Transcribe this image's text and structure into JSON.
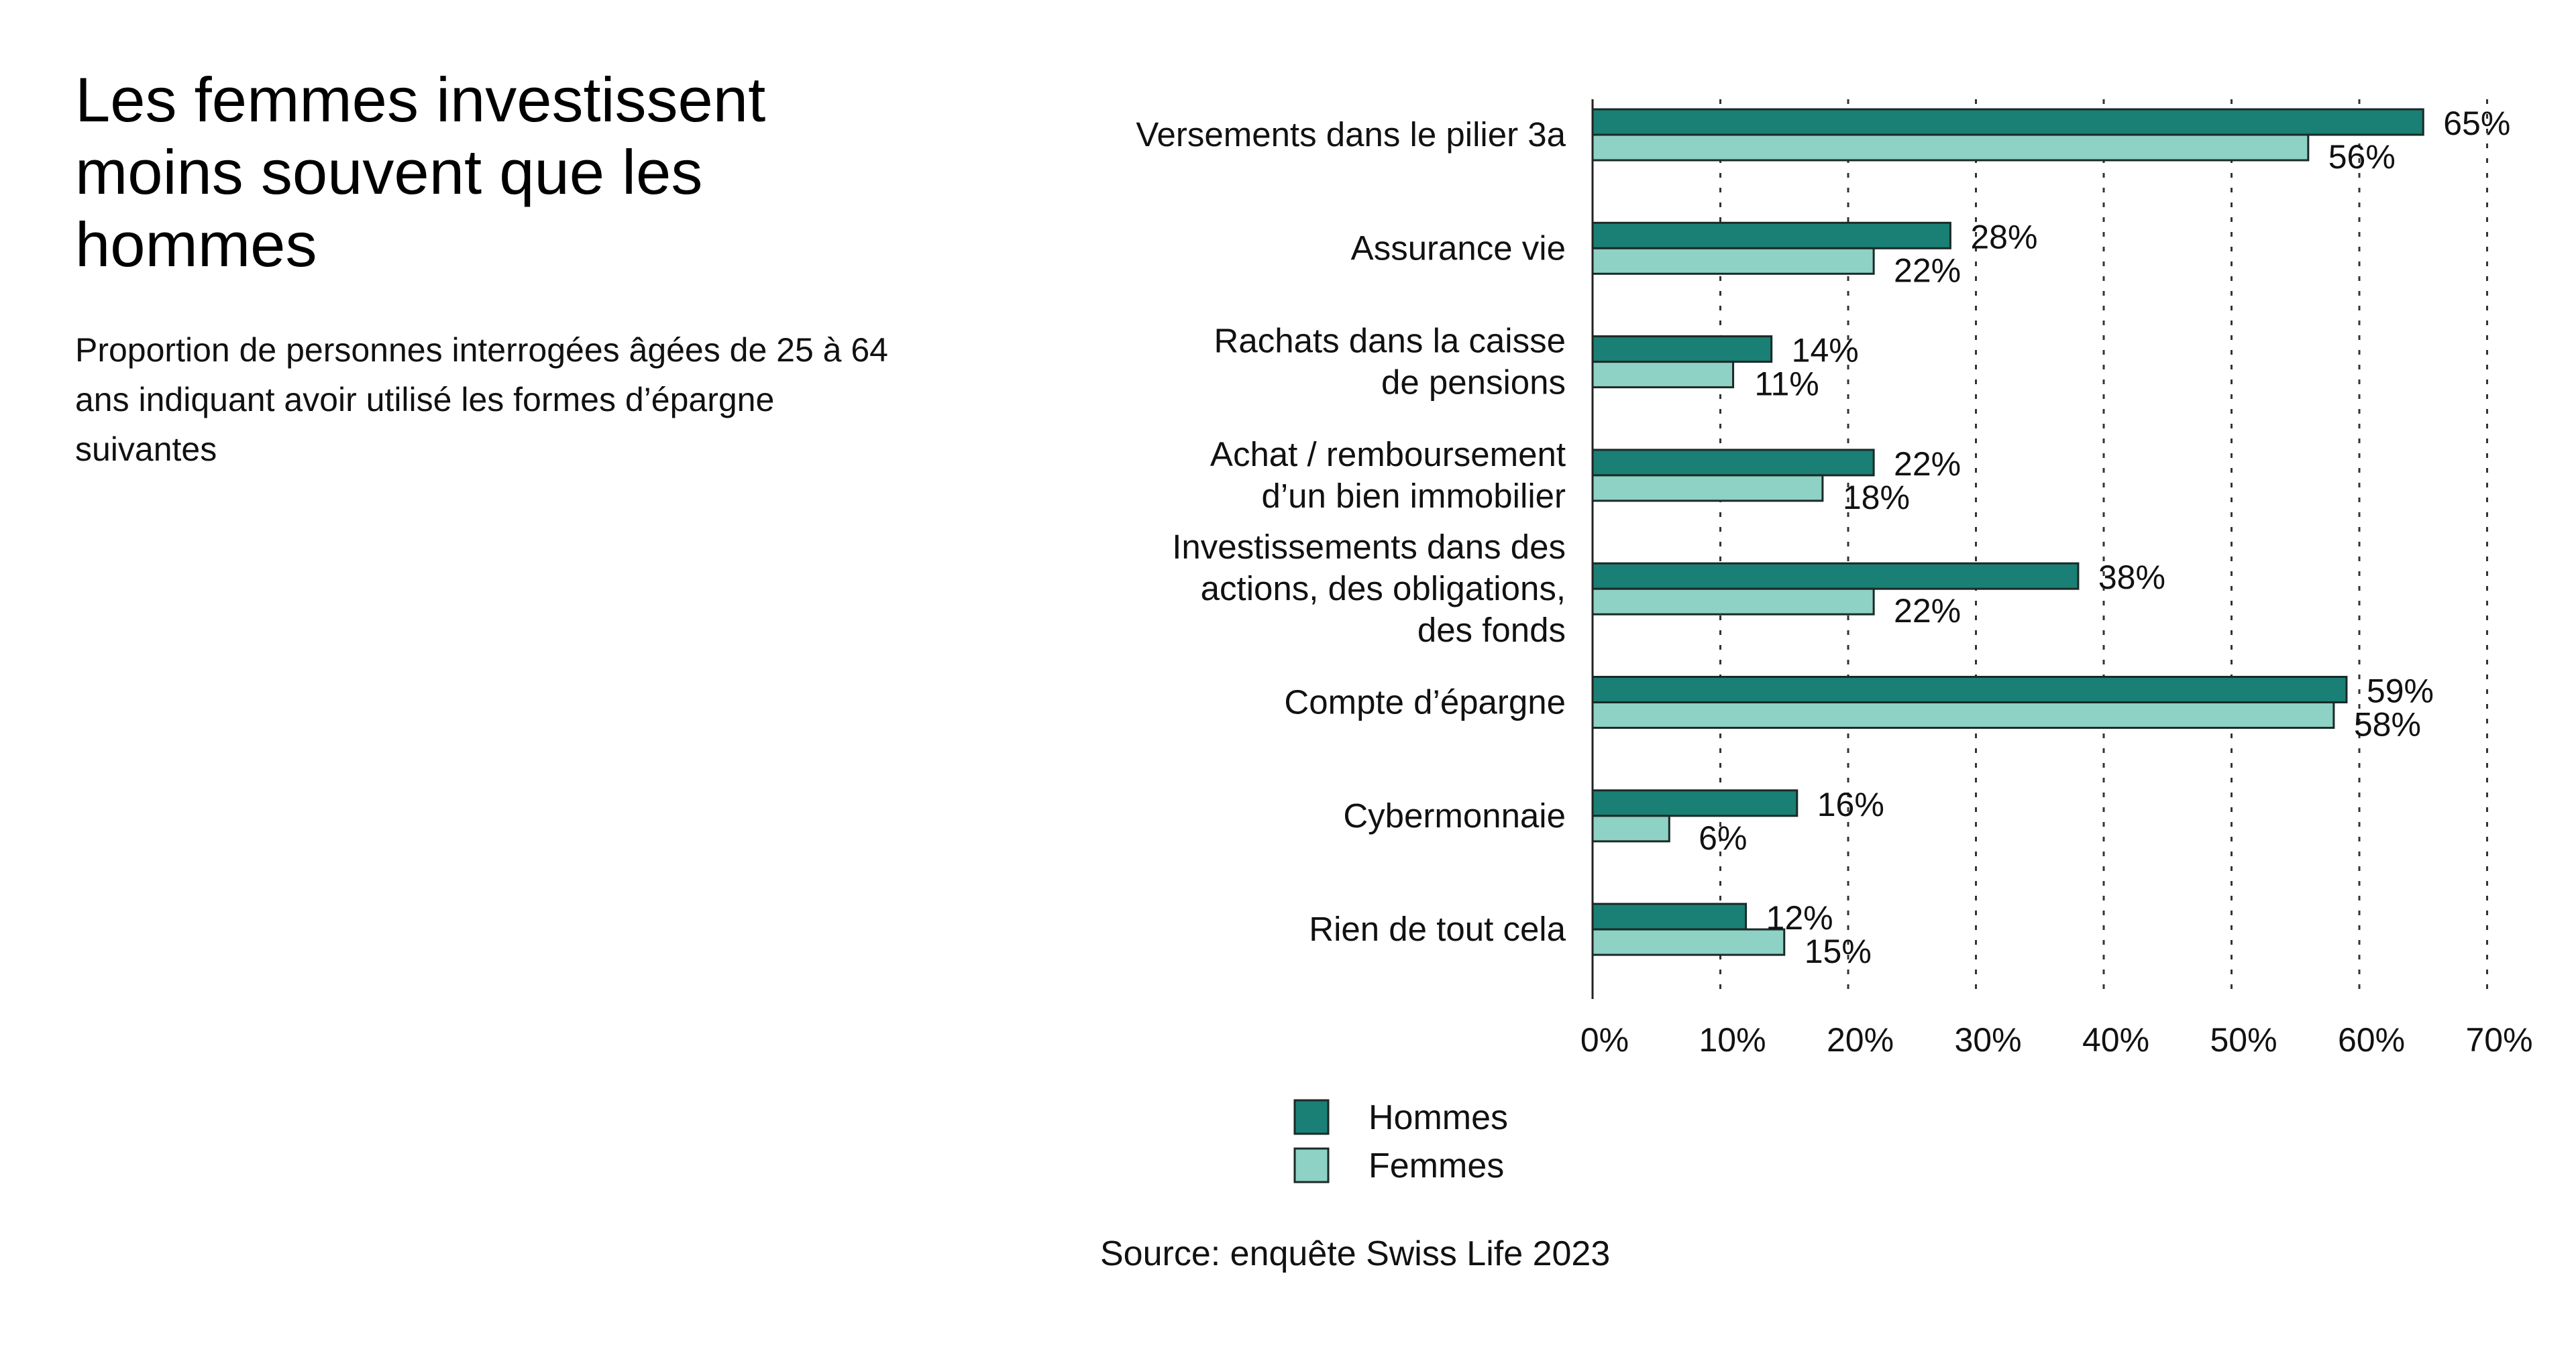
{
  "title": "Les femmes investissent moins souvent que les hommes",
  "subtitle": "Proportion de personnes interrogées âgées de 25 à 64 ans indiquant avoir utilisé les formes d’épargne suivantes",
  "source": "Source: enquête Swiss Life 2023",
  "colors": {
    "hommes": "#1a7f74",
    "femmes": "#8ed1c5",
    "outline": "#1b2a27",
    "grid": "#333333"
  },
  "chart_data": {
    "type": "bar",
    "orientation": "horizontal",
    "categories": [
      [
        "Versements dans le pilier 3a"
      ],
      [
        "Assurance vie"
      ],
      [
        "Rachats dans la caisse",
        "de pensions"
      ],
      [
        "Achat / remboursement",
        "d’un bien immobilier"
      ],
      [
        "Investissements dans des",
        "actions, des obligations,",
        "des fonds"
      ],
      [
        "Compte d’épargne"
      ],
      [
        "Cybermonnaie"
      ],
      [
        "Rien de tout cela"
      ]
    ],
    "series": [
      {
        "name": "Hommes",
        "values": [
          65,
          28,
          14,
          22,
          38,
          59,
          16,
          12
        ]
      },
      {
        "name": "Femmes",
        "values": [
          56,
          22,
          11,
          18,
          22,
          58,
          6,
          15
        ]
      }
    ],
    "xlim": [
      0,
      70
    ],
    "xticks": [
      0,
      10,
      20,
      30,
      40,
      50,
      60,
      70
    ],
    "tick_suffix": "%",
    "grid": "vertical dotted",
    "legend": "bottom"
  }
}
